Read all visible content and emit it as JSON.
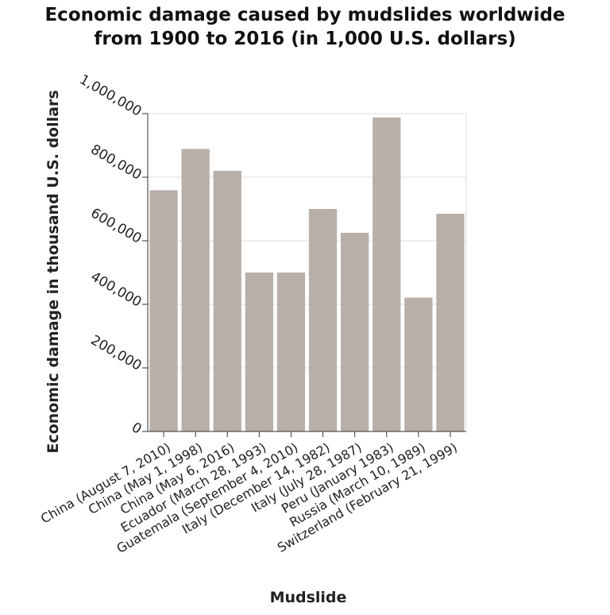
{
  "chart_data": {
    "type": "bar",
    "title_lines": [
      "Economic damage caused by mudslides worldwide",
      "from 1900 to 2016 (in 1,000 U.S. dollars)"
    ],
    "xlabel": "Mudslide",
    "ylabel": "Economic damage in thousand U.S. dollars",
    "categories": [
      "China (August 7, 2010)",
      "China (May 1, 1998)",
      "China (May 6, 2016)",
      "Ecuador (March 28, 1993)",
      "Guatemala (September 4, 2010)",
      "Italy (December 14, 1982)",
      "Italy (July 28, 1987)",
      "Peru (January 1983)",
      "Russia (March 10, 1989)",
      "Switzerland (February 21, 1999)"
    ],
    "values": [
      759000,
      889000,
      820000,
      500000,
      500000,
      700000,
      625000,
      988000,
      421000,
      685000
    ],
    "ylim": [
      0,
      1000000
    ],
    "yticks": [
      0,
      200000,
      400000,
      600000,
      800000,
      1000000
    ],
    "ytick_labels": [
      "0",
      "200,000",
      "400,000",
      "600,000",
      "800,000",
      "1,000,000"
    ],
    "grid": true,
    "bar_color": "#b9afa9",
    "grid_color": "#dddddd"
  }
}
